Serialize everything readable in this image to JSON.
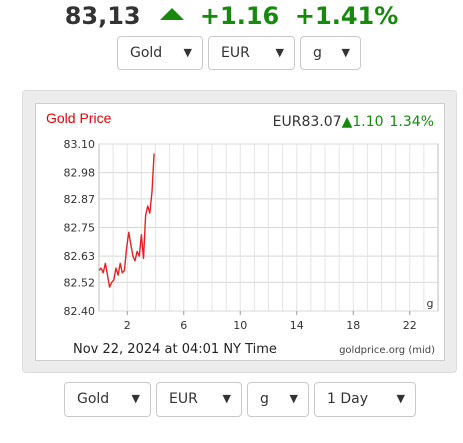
{
  "header": {
    "price": "83,13",
    "change": "+1.16",
    "change_pct": "+1.41%",
    "arrow_icon": "triangle-up",
    "up_color": "#178a0e"
  },
  "top_selects": {
    "metal": "Gold",
    "currency": "EUR",
    "unit": "g"
  },
  "chart": {
    "title": "Gold Price",
    "quote_price": "EUR83.07",
    "quote_change": "1.10",
    "quote_pct": "1.34%",
    "timestamp": "Nov 22, 2024 at 04:01 NY Time",
    "source": "goldprice.org (mid)",
    "unit_label": "g",
    "title_color": "#e60000",
    "line_color": "#e62020"
  },
  "chart_data": {
    "type": "line",
    "title": "Gold Price",
    "y_ticks": [
      "83.10",
      "82.98",
      "82.87",
      "82.75",
      "82.63",
      "82.52",
      "82.40"
    ],
    "x_ticks": [
      "2",
      "6",
      "10",
      "14",
      "18",
      "22"
    ],
    "xlim": [
      0,
      24
    ],
    "ylim": [
      82.4,
      83.1
    ],
    "grid": true,
    "series": [
      {
        "x": [
          0.0,
          0.15,
          0.3,
          0.45,
          0.6,
          0.75,
          0.9,
          1.05,
          1.2,
          1.35,
          1.5,
          1.65,
          1.8,
          1.95,
          2.1,
          2.25,
          2.4,
          2.55,
          2.7,
          2.85,
          3.0,
          3.15,
          3.3,
          3.45,
          3.6,
          3.75,
          3.9
        ],
        "values": [
          82.57,
          82.58,
          82.56,
          82.6,
          82.55,
          82.5,
          82.52,
          82.53,
          82.58,
          82.55,
          82.6,
          82.56,
          82.57,
          82.66,
          82.73,
          82.68,
          82.63,
          82.61,
          82.65,
          82.63,
          82.72,
          82.62,
          82.8,
          82.84,
          82.81,
          82.9,
          83.06
        ]
      }
    ]
  },
  "bottom_selects": {
    "metal": "Gold",
    "currency": "EUR",
    "unit": "g",
    "period": "1 Day"
  }
}
